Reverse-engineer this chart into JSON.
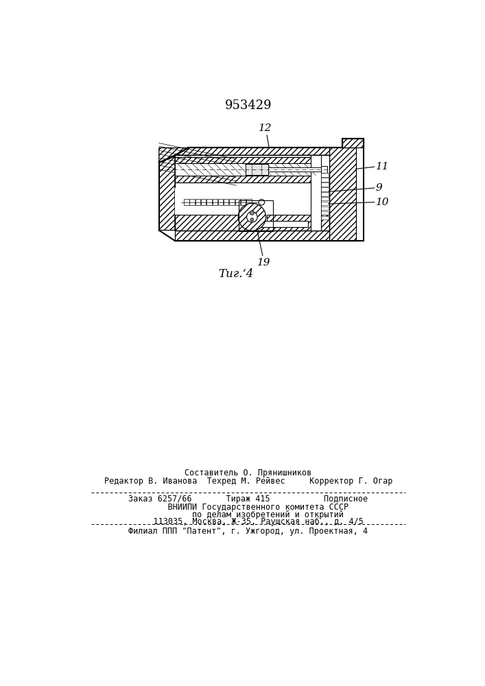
{
  "patent_number": "953429",
  "fig_label": "Τиг.‘4",
  "bg_color": "#ffffff",
  "footer": {
    "line1": "Составитель О. Прянишников",
    "line2": "Редактор В. Иванова  Техред М. Рейвес     Корректор Г. Огар",
    "info1": "Заказ 6257/66       Тираж 415           Подписное",
    "info2": "    ВНИИПИ Государственного комитета СССР",
    "info3": "        по делам изобретений и открытий",
    "info4": "    113035, Москва, Ж-35, Раушская наб., д. 4/5",
    "filial": "Филиал ППП \"Патент\", г. Ужгород, ул. Проектная, 4"
  }
}
